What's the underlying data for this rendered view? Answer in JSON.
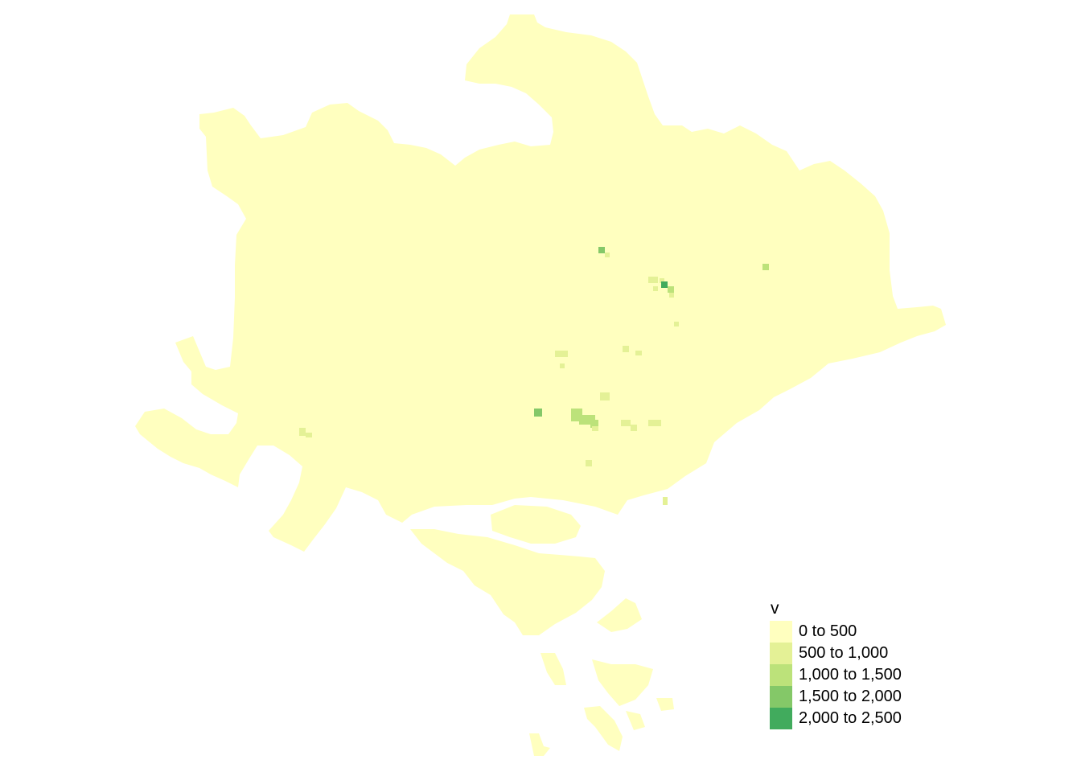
{
  "legend": {
    "title": "v",
    "classes": [
      {
        "label": "0 to 500",
        "color": "#FFFFBF"
      },
      {
        "label": "500 to 1,000",
        "color": "#E4F196"
      },
      {
        "label": "1,000 to 1,500",
        "color": "#BCE27A"
      },
      {
        "label": "1,500 to 2,000",
        "color": "#84C868"
      },
      {
        "label": "2,000 to 2,500",
        "color": "#41AB5D"
      }
    ]
  },
  "map": {
    "base_color": "#FFFFBF"
  }
}
